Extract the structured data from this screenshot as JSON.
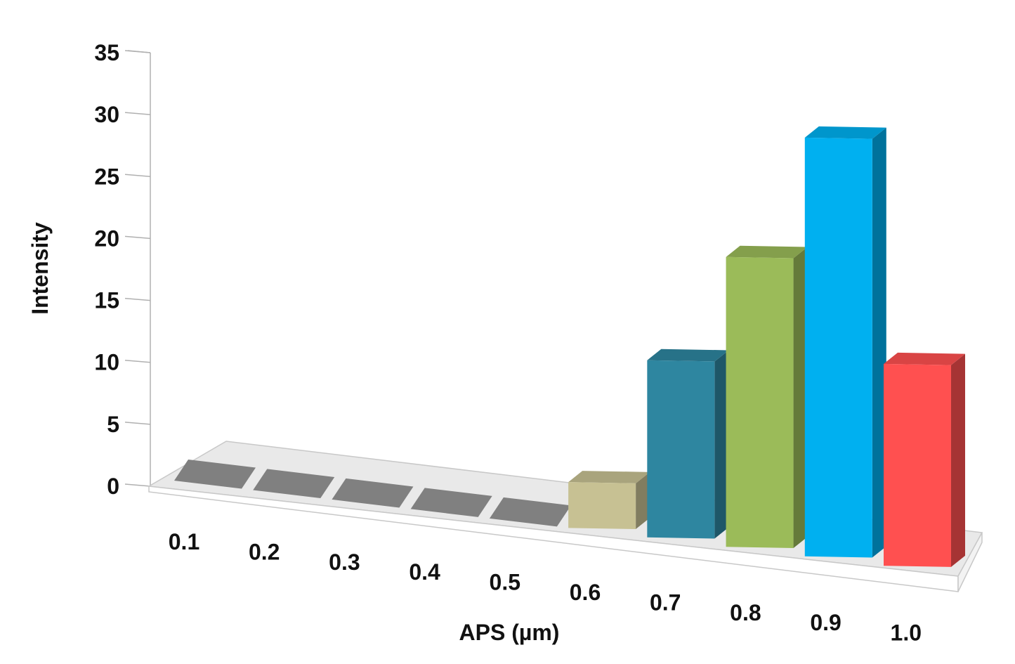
{
  "chart_data": {
    "type": "bar",
    "title": "",
    "xlabel": "APS (µm)",
    "ylabel": "Intensity",
    "categories": [
      "0.1",
      "0.2",
      "0.3",
      "0.4",
      "0.5",
      "0.6",
      "0.7",
      "0.8",
      "0.9",
      "1.0"
    ],
    "values": [
      0,
      0,
      0,
      0,
      0,
      3.7,
      14.3,
      23.4,
      33.8,
      16.3
    ],
    "ylim": [
      0,
      35
    ],
    "yticks": [
      "0",
      "5",
      "10",
      "15",
      "20",
      "25",
      "30",
      "35"
    ],
    "bar_colors": [
      "#808080",
      "#808080",
      "#808080",
      "#808080",
      "#808080",
      "#c7c193",
      "#2e86a0",
      "#9bbb59",
      "#00b0f0",
      "#ff5050"
    ],
    "grid": false,
    "legend": "none",
    "style": "3d-perspective"
  }
}
